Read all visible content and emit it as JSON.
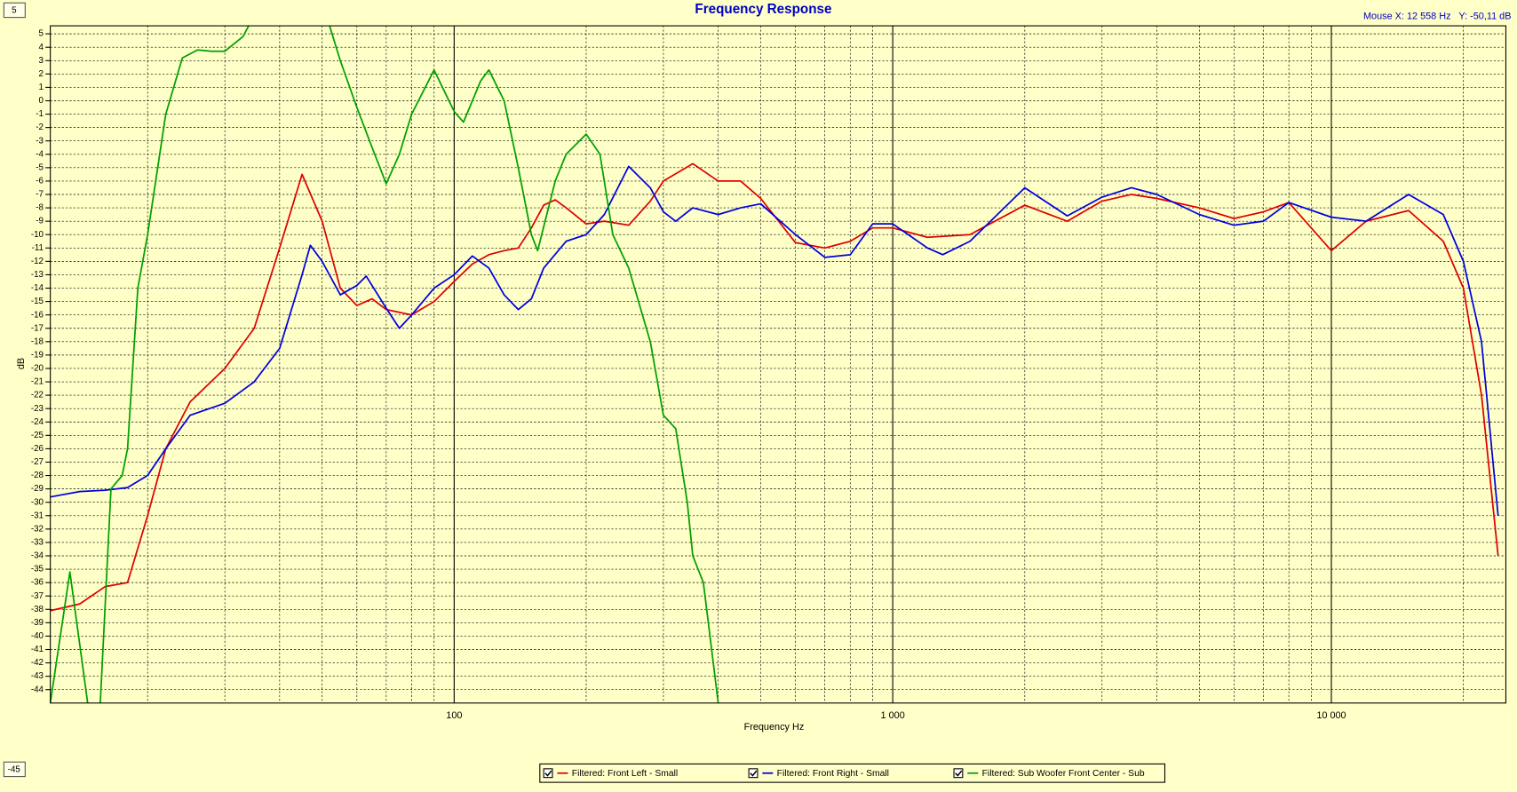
{
  "controls": {
    "y_max": "5",
    "y_min": "-45",
    "mouse_readout": "Mouse X: 12 558 Hz   Y: -50,11 dB"
  },
  "chart_data": {
    "type": "line",
    "title": "Frequency Response",
    "x_label": "Frequency Hz",
    "y_label": "dB",
    "xscale": "log",
    "grid": true,
    "xlim": [
      12,
      25000
    ],
    "ylim": [
      -45,
      5.6
    ],
    "xticks": [
      100,
      {
        "value": 1000,
        "label": "1 000"
      },
      {
        "value": 10000,
        "label": "10 000"
      }
    ],
    "xminor_ticks": [
      20,
      30,
      40,
      50,
      60,
      70,
      80,
      90,
      200,
      300,
      400,
      500,
      600,
      700,
      800,
      900,
      2000,
      3000,
      4000,
      5000,
      6000,
      7000,
      8000,
      9000,
      20000
    ],
    "yticks": [
      5,
      4,
      3,
      2,
      1,
      0,
      -1,
      -2,
      -3,
      -4,
      -5,
      -6,
      -7,
      -8,
      -9,
      -10,
      -11,
      -12,
      -13,
      -14,
      -15,
      -16,
      -17,
      -18,
      -19,
      -20,
      -21,
      -22,
      -23,
      -24,
      -25,
      -26,
      -27,
      -28,
      -29,
      -30,
      -31,
      -32,
      -33,
      -34,
      -35,
      -36,
      -37,
      -38,
      -39,
      -40,
      -41,
      -42,
      -43,
      -44
    ],
    "series": [
      {
        "name": "Filtered: Front Left - Small",
        "color": "#e00000",
        "x": [
          12,
          14,
          16,
          18,
          20,
          22,
          25,
          30,
          35,
          40,
          45,
          50,
          55,
          60,
          65,
          70,
          80,
          90,
          100,
          110,
          120,
          130,
          140,
          150,
          160,
          170,
          180,
          200,
          220,
          250,
          280,
          300,
          350,
          400,
          450,
          500,
          600,
          700,
          800,
          900,
          1000,
          1200,
          1500,
          2000,
          2500,
          3000,
          3500,
          4000,
          5000,
          6000,
          7000,
          8000,
          10000,
          12000,
          15000,
          18000,
          20000,
          22000,
          24000
        ],
        "values": [
          -38.1,
          -37.6,
          -36.3,
          -36,
          -31,
          -26,
          -22.5,
          -20,
          -17,
          -11,
          -5.5,
          -9,
          -14,
          -15.3,
          -14.8,
          -15.6,
          -16,
          -15,
          -13.5,
          -12.2,
          -11.5,
          -11.2,
          -11,
          -9.5,
          -7.8,
          -7.4,
          -8,
          -9.2,
          -9,
          -9.3,
          -7.5,
          -6,
          -4.7,
          -6,
          -6,
          -7.3,
          -10.6,
          -11,
          -10.5,
          -9.5,
          -9.5,
          -10.2,
          -10,
          -7.8,
          -9,
          -7.5,
          -7,
          -7.3,
          -8,
          -8.8,
          -8.3,
          -7.6,
          -11.2,
          -9,
          -8.2,
          -10.5,
          -14,
          -22,
          -34
        ]
      },
      {
        "name": "Filtered: Front Right - Small",
        "color": "#0000e0",
        "x": [
          12,
          14,
          16,
          18,
          20,
          22,
          25,
          30,
          35,
          40,
          45,
          47,
          50,
          55,
          60,
          63,
          70,
          75,
          80,
          90,
          100,
          110,
          120,
          130,
          140,
          150,
          160,
          180,
          200,
          220,
          250,
          280,
          300,
          320,
          350,
          400,
          450,
          500,
          600,
          700,
          800,
          900,
          1000,
          1200,
          1300,
          1500,
          2000,
          2500,
          3000,
          3500,
          4000,
          5000,
          6000,
          7000,
          8000,
          10000,
          12000,
          15000,
          18000,
          20000,
          22000,
          24000
        ],
        "values": [
          -29.6,
          -29.2,
          -29.1,
          -28.9,
          -28,
          -26,
          -23.5,
          -22.6,
          -21,
          -18.5,
          -13,
          -10.8,
          -12,
          -14.5,
          -13.8,
          -13.1,
          -15.5,
          -17,
          -16,
          -14,
          -13,
          -11.6,
          -12.5,
          -14.5,
          -15.6,
          -14.8,
          -12.5,
          -10.5,
          -10,
          -8.5,
          -4.9,
          -6.5,
          -8.3,
          -9,
          -8,
          -8.5,
          -8,
          -7.7,
          -10,
          -11.7,
          -11.5,
          -9.2,
          -9.2,
          -11,
          -11.5,
          -10.5,
          -6.5,
          -8.6,
          -7.2,
          -6.5,
          -7,
          -8.5,
          -9.3,
          -9,
          -7.6,
          -8.7,
          -9,
          -7,
          -8.5,
          -12,
          -18,
          -31
        ]
      },
      {
        "name": "Filtered: Sub Woofer Front Center - Sub",
        "color": "#00a000",
        "x": [
          12,
          13.3,
          14.6,
          15.1,
          15.6,
          16.5,
          17.5,
          18,
          19,
          20,
          22,
          24,
          26,
          28,
          30,
          33,
          34,
          43,
          52,
          55,
          60,
          65,
          70,
          75,
          80,
          90,
          100,
          105,
          115,
          120,
          130,
          140,
          150,
          155,
          170,
          180,
          200,
          215,
          230,
          250,
          280,
          300,
          320,
          340,
          350,
          370,
          400
        ],
        "values": [
          -45,
          -35.2,
          -45,
          null,
          -45,
          -29,
          -28,
          -26,
          -14,
          -10,
          -1,
          3.2,
          3.8,
          3.7,
          3.7,
          4.8,
          5.6,
          null,
          5.6,
          3,
          -0.5,
          -3.5,
          -6.2,
          -4,
          -1,
          2.3,
          -0.8,
          -1.6,
          1.5,
          2.3,
          0,
          -5,
          -10,
          -11.2,
          -6,
          -4,
          -2.5,
          -4,
          -10,
          -12.5,
          -18,
          -23.5,
          -24.5,
          -30,
          -34,
          -36,
          -45
        ]
      }
    ]
  }
}
